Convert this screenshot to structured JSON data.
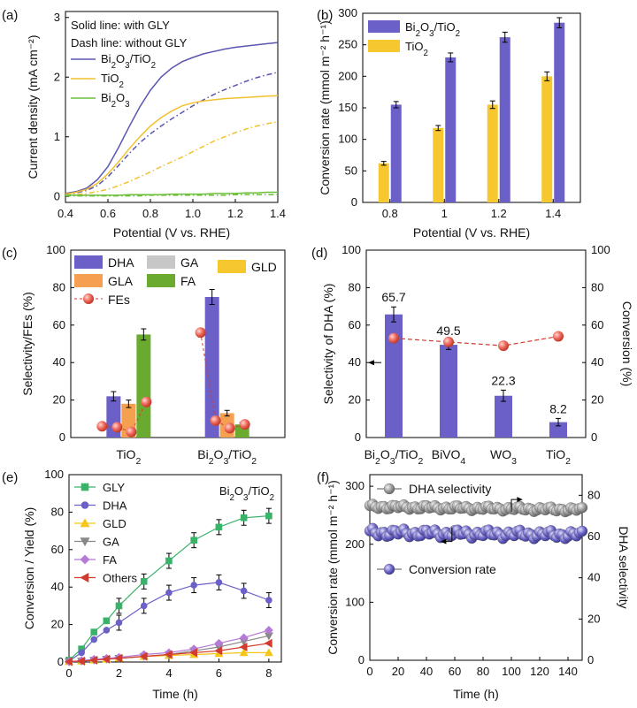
{
  "chart_data": [
    {
      "panel": "(a)",
      "type": "line",
      "xlabel": "Potential (V vs. RHE)",
      "ylabel": "Current density (mA cm⁻²)",
      "xlim": [
        0.4,
        1.4
      ],
      "ylim": [
        -0.1,
        3.1
      ],
      "xticks": [
        "0.4",
        "0.6",
        "0.8",
        "1.0",
        "1.2",
        "1.4"
      ],
      "yticks": [
        "0",
        "1",
        "2",
        "3"
      ],
      "notes": [
        "Solid line: with GLY",
        "Dash line: without GLY"
      ],
      "legend": [
        "Bi2O3/TiO2",
        "TiO2",
        "Bi2O3"
      ],
      "x": [
        0.4,
        0.45,
        0.5,
        0.55,
        0.6,
        0.65,
        0.7,
        0.75,
        0.8,
        0.85,
        0.9,
        0.95,
        1.0,
        1.05,
        1.1,
        1.15,
        1.2,
        1.25,
        1.3,
        1.35,
        1.4
      ],
      "series": [
        {
          "name": "Bi2O3/TiO2",
          "style": "solid",
          "color": "#5a56b0",
          "values": [
            0.05,
            0.08,
            0.14,
            0.28,
            0.5,
            0.82,
            1.17,
            1.5,
            1.78,
            2.0,
            2.15,
            2.26,
            2.33,
            2.39,
            2.43,
            2.47,
            2.5,
            2.52,
            2.54,
            2.56,
            2.58
          ]
        },
        {
          "name": "Bi2O3/TiO2",
          "style": "dash",
          "color": "#5a56b0",
          "values": [
            0.04,
            0.06,
            0.1,
            0.18,
            0.33,
            0.52,
            0.72,
            0.9,
            1.05,
            1.18,
            1.3,
            1.41,
            1.52,
            1.62,
            1.71,
            1.79,
            1.86,
            1.93,
            1.99,
            2.04,
            2.08
          ]
        },
        {
          "name": "TiO2",
          "style": "solid",
          "color": "#f2c12e",
          "values": [
            0.04,
            0.07,
            0.12,
            0.22,
            0.38,
            0.58,
            0.8,
            1.0,
            1.18,
            1.32,
            1.43,
            1.52,
            1.57,
            1.6,
            1.62,
            1.64,
            1.65,
            1.66,
            1.67,
            1.68,
            1.69
          ]
        },
        {
          "name": "TiO2",
          "style": "dash",
          "color": "#f2c12e",
          "values": [
            0.02,
            0.03,
            0.05,
            0.08,
            0.12,
            0.18,
            0.25,
            0.33,
            0.41,
            0.5,
            0.58,
            0.66,
            0.75,
            0.84,
            0.93,
            1.0,
            1.07,
            1.13,
            1.18,
            1.22,
            1.25
          ]
        },
        {
          "name": "Bi2O3",
          "style": "solid",
          "color": "#6cbf3a",
          "values": [
            0.02,
            0.02,
            0.02,
            0.02,
            0.02,
            0.02,
            0.03,
            0.03,
            0.03,
            0.03,
            0.04,
            0.04,
            0.04,
            0.04,
            0.05,
            0.05,
            0.05,
            0.06,
            0.06,
            0.07,
            0.07
          ]
        },
        {
          "name": "Bi2O3",
          "style": "dash",
          "color": "#6cbf3a",
          "values": [
            0.01,
            0.01,
            0.01,
            0.01,
            0.01,
            0.01,
            0.01,
            0.01,
            0.02,
            0.02,
            0.02,
            0.02,
            0.02,
            0.02,
            0.02,
            0.02,
            0.03,
            0.03,
            0.03,
            0.03,
            0.03
          ]
        }
      ]
    },
    {
      "panel": "(b)",
      "type": "bar",
      "xlabel": "Potential (V vs. RHE)",
      "ylabel": "Conversion rate (mmol m⁻² h⁻¹)",
      "ylim": [
        0,
        300
      ],
      "yticks": [
        "0",
        "50",
        "100",
        "150",
        "200",
        "250",
        "300"
      ],
      "categories": [
        "0.8",
        "1",
        "1.2",
        "1.4"
      ],
      "series": [
        {
          "name": "Bi2O3/TiO2",
          "color": "#6a60c8",
          "values": [
            155,
            230,
            262,
            285
          ],
          "errors": [
            5,
            7,
            8,
            8
          ]
        },
        {
          "name": "TiO2",
          "color": "#f7c72f",
          "values": [
            62,
            118,
            155,
            200
          ],
          "errors": [
            3,
            4,
            6,
            7
          ]
        }
      ]
    },
    {
      "panel": "(c)",
      "type": "bar",
      "ylabel": "Selectivity/FEs (%)",
      "ylim": [
        0,
        100
      ],
      "yticks": [
        "0",
        "20",
        "40",
        "60",
        "80",
        "100"
      ],
      "categories": [
        "TiO2",
        "Bi2O3/TiO2"
      ],
      "legend": [
        "DHA",
        "GA",
        "GLD",
        "GLA",
        "FA",
        "FEs"
      ],
      "series": [
        {
          "name": "DHA",
          "color": "#6a60c8",
          "values": [
            22,
            75
          ],
          "errors": [
            2.5,
            4
          ]
        },
        {
          "name": "GLA",
          "color": "#f5a050",
          "values": [
            18,
            13
          ],
          "errors": [
            2,
            1.5
          ]
        },
        {
          "name": "FA",
          "color": "#6aaa2e",
          "values": [
            55,
            7
          ],
          "errors": [
            3,
            1
          ]
        }
      ],
      "fes": [
        {
          "group": 0,
          "values": [
            6,
            5.5,
            3,
            19
          ]
        },
        {
          "group": 1,
          "values": [
            56,
            9,
            5,
            7
          ]
        }
      ]
    },
    {
      "panel": "(d)",
      "type": "bar",
      "ylabel": "Selectivity of DHA (%)",
      "y2label": "Conversion (%)",
      "ylim": [
        0,
        100
      ],
      "yticks": [
        "0",
        "20",
        "40",
        "60",
        "80",
        "100"
      ],
      "categories": [
        "Bi2O3/TiO2",
        "BiVO4",
        "WO3",
        "TiO2"
      ],
      "values": [
        65.7,
        49.5,
        22.3,
        8.2
      ],
      "value_labels": [
        "65.7",
        "49.5",
        "22.3",
        "8.2"
      ],
      "errors": [
        4,
        2.5,
        3,
        2
      ],
      "conversion": [
        53,
        51,
        49,
        54
      ]
    },
    {
      "panel": "(e)",
      "type": "line",
      "xlabel": "Time (h)",
      "ylabel": "Conversion / Yield (%)",
      "xlim": [
        0,
        8.5
      ],
      "ylim": [
        0,
        100
      ],
      "xticks": [
        "0",
        "2",
        "4",
        "6",
        "8"
      ],
      "yticks": [
        "0",
        "20",
        "40",
        "60",
        "80",
        "100"
      ],
      "annotation": "Bi2O3/TiO2",
      "x": [
        0,
        0.5,
        1,
        1.5,
        2,
        3,
        4,
        5,
        6,
        7,
        8
      ],
      "series": [
        {
          "name": "GLY",
          "color": "#3ab36a",
          "marker": "square",
          "values": [
            1,
            7,
            16,
            22,
            30,
            43,
            54,
            65,
            72,
            77,
            78
          ]
        },
        {
          "name": "DHA",
          "color": "#6a60c8",
          "marker": "circle",
          "values": [
            0.5,
            5,
            12,
            17,
            21,
            30,
            37,
            41,
            42.5,
            38,
            33
          ]
        },
        {
          "name": "GLD",
          "color": "#f5c518",
          "marker": "triangle-up",
          "values": [
            0.2,
            0.5,
            1,
            1.5,
            2,
            3,
            3.5,
            4,
            4.5,
            5,
            5
          ]
        },
        {
          "name": "GA",
          "color": "#888888",
          "marker": "triangle-down",
          "values": [
            0.2,
            0.5,
            1,
            1.5,
            2,
            3,
            4,
            6,
            8,
            11,
            14
          ]
        },
        {
          "name": "FA",
          "color": "#b57ad6",
          "marker": "diamond",
          "values": [
            0.2,
            0.8,
            1.5,
            2,
            2.5,
            4,
            5,
            7,
            10,
            13,
            17
          ]
        },
        {
          "name": "Others",
          "color": "#d23b2d",
          "marker": "triangle-left",
          "values": [
            0.2,
            0.5,
            1,
            1.5,
            2,
            3,
            4,
            5,
            6,
            8,
            10
          ]
        }
      ]
    },
    {
      "panel": "(f)",
      "type": "scatter",
      "xlabel": "Time (h)",
      "ylabel": "Conversion rate (mmol m⁻² h⁻¹)",
      "y2label": "DHA selectivity",
      "xlim": [
        0,
        150
      ],
      "ylim": [
        0,
        320
      ],
      "y2lim": [
        0,
        90
      ],
      "xticks": [
        "0",
        "20",
        "40",
        "60",
        "80",
        "100",
        "120",
        "140"
      ],
      "yticks": [
        "0",
        "100",
        "200",
        "300"
      ],
      "y2ticks": [
        "0",
        "20",
        "40",
        "60",
        "80"
      ],
      "series": [
        {
          "name": "DHA selectivity",
          "axis": "right",
          "color": "#8a8a8a",
          "mean": 74.5,
          "amp": 0.8
        },
        {
          "name": "Conversion rate",
          "axis": "left",
          "color": "#5a56b0",
          "mean": 220,
          "amp": 5
        }
      ]
    }
  ]
}
